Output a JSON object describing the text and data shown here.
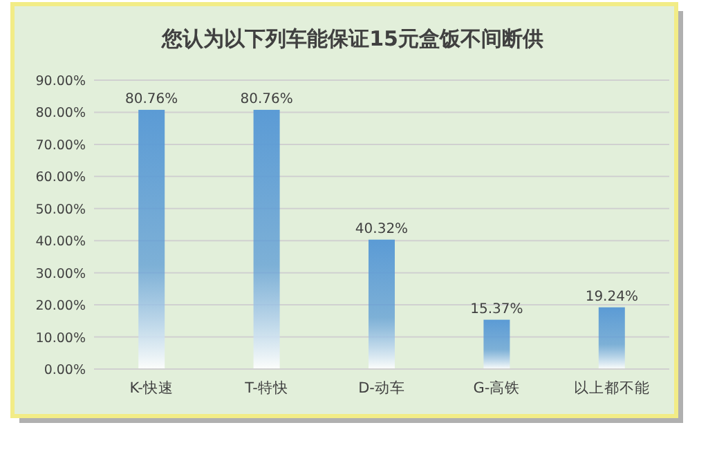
{
  "chart_data": {
    "type": "bar",
    "title": "您认为以下列车能保证15元盒饭不间断供",
    "categories": [
      "K-快速",
      "T-特快",
      "D-动车",
      "G-高铁",
      "以上都不能"
    ],
    "values": [
      80.76,
      80.76,
      40.32,
      15.37,
      19.24
    ],
    "value_labels": [
      "80.76%",
      "80.76%",
      "40.32%",
      "15.37%",
      "19.24%"
    ],
    "color": "#5b9bd5",
    "ylim": [
      0,
      90
    ],
    "yticks": [
      {
        "value": 0,
        "label": "0.00%"
      },
      {
        "value": 10,
        "label": "10.00%"
      },
      {
        "value": 20,
        "label": "20.00%"
      },
      {
        "value": 30,
        "label": "30.00%"
      },
      {
        "value": 40,
        "label": "40.00%"
      },
      {
        "value": 50,
        "label": "50.00%"
      },
      {
        "value": 60,
        "label": "60.00%"
      },
      {
        "value": 70,
        "label": "70.00%"
      },
      {
        "value": 80,
        "label": "80.00%"
      },
      {
        "value": 90,
        "label": "90.00%"
      }
    ],
    "grid": "y"
  }
}
